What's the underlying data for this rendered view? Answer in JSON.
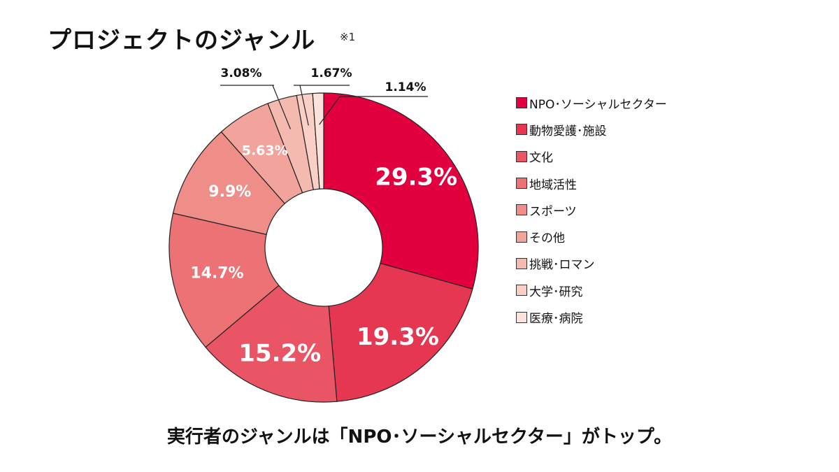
{
  "title": "プロジェクトのジャンル",
  "title_note": "※1",
  "caption": "実行者のジャンルは「NPO･ソーシャルセクター」がトップ。",
  "chart_data": {
    "type": "pie",
    "style": "donut",
    "title": "プロジェクトのジャンル",
    "unit": "%",
    "legend_placement": "right",
    "categories": [
      "NPO･ソーシャルセクター",
      "動物愛護･施設",
      "文化",
      "地域活性",
      "スポーツ",
      "その他",
      "挑戦･ロマン",
      "大学･研究",
      "医療･病院"
    ],
    "values": [
      29.3,
      19.3,
      15.2,
      14.7,
      9.9,
      5.63,
      3.08,
      1.67,
      1.14
    ],
    "labels": [
      "29.3%",
      "19.3%",
      "15.2%",
      "14.7%",
      "9.9%",
      "5.63%",
      "3.08%",
      "1.67%",
      "1.14%"
    ],
    "colors": [
      "#e3003f",
      "#e53652",
      "#e95565",
      "#ec7275",
      "#ef8d88",
      "#f2a39c",
      "#f5baaf",
      "#f9cfc6",
      "#fbe2dc"
    ],
    "label_colors": [
      "#ffffff",
      "#ffffff",
      "#ffffff",
      "#ffffff",
      "#ffffff",
      "#ffffff",
      "#111111",
      "#111111",
      "#111111"
    ]
  }
}
